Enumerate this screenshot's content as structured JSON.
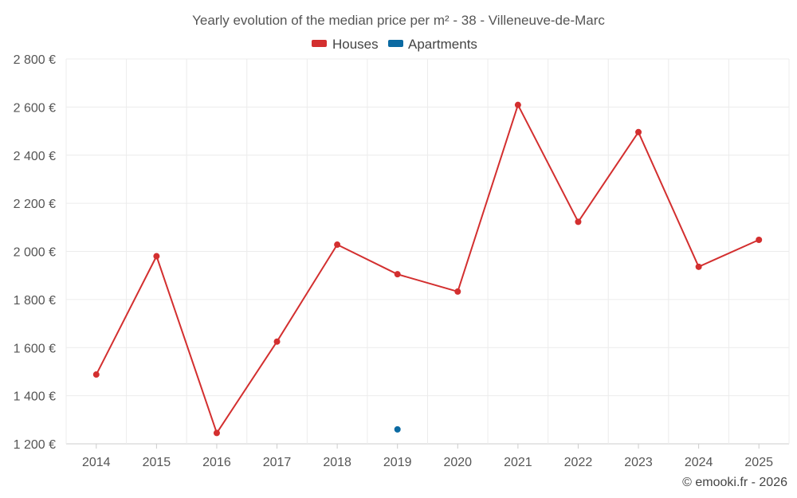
{
  "chart_data": {
    "type": "line",
    "title": "Yearly evolution of the median price per m² - 38 - Villeneuve-de-Marc",
    "categories": [
      "2014",
      "2015",
      "2016",
      "2017",
      "2018",
      "2019",
      "2020",
      "2021",
      "2022",
      "2023",
      "2024",
      "2025"
    ],
    "ylim": [
      1200,
      2800
    ],
    "yticks": [
      1200,
      1400,
      1600,
      1800,
      2000,
      2200,
      2400,
      2600,
      2800
    ],
    "ytick_labels": [
      "1 200 €",
      "1 400 €",
      "1 600 €",
      "1 800 €",
      "2 000 €",
      "2 200 €",
      "2 400 €",
      "2 600 €",
      "2 800 €"
    ],
    "grid": true,
    "legend_position": "top-center",
    "series": [
      {
        "name": "Houses",
        "color": "#d32f2f",
        "values": [
          1488,
          1980,
          1245,
          1625,
          2028,
          1905,
          1833,
          2609,
          2123,
          2496,
          1936,
          2048
        ]
      },
      {
        "name": "Apartments",
        "color": "#0b6aa2",
        "values": [
          null,
          null,
          null,
          null,
          null,
          1260,
          null,
          null,
          null,
          null,
          null,
          null
        ]
      }
    ],
    "credit": "© emooki.fr - 2026"
  }
}
